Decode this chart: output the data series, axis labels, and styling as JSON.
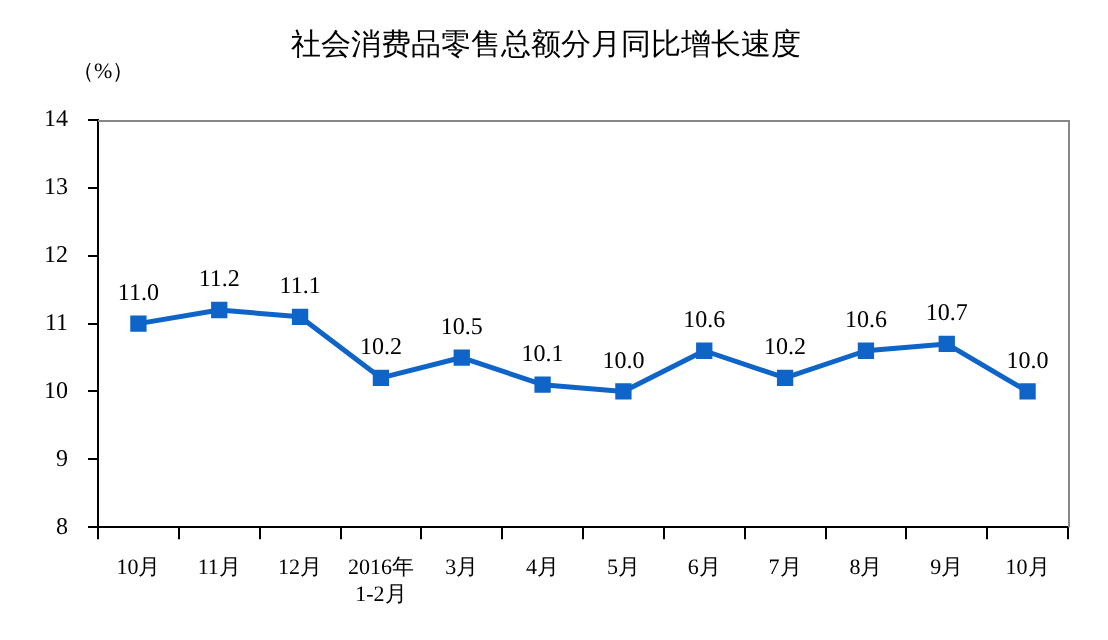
{
  "chart_data": {
    "type": "line",
    "title": "社会消费品零售总额分月同比增长速度",
    "ylabel": "（%）",
    "categories": [
      "10月",
      "11月",
      "12月",
      "2016年\n1-2月",
      "3月",
      "4月",
      "5月",
      "6月",
      "7月",
      "8月",
      "9月",
      "10月"
    ],
    "series": [
      {
        "color": "#0f64c8",
        "values": [
          11.0,
          11.2,
          11.1,
          10.2,
          10.5,
          10.1,
          10.0,
          10.6,
          10.2,
          10.6,
          10.7,
          10.0
        ],
        "value_labels": [
          "11.0",
          "11.2",
          "11.1",
          "10.2",
          "10.5",
          "10.1",
          "10.0",
          "10.6",
          "10.2",
          "10.6",
          "10.7",
          "10.0"
        ]
      }
    ],
    "ylim": [
      8,
      14
    ],
    "yticks": [
      8,
      9,
      10,
      11,
      12,
      13,
      14
    ],
    "grid": false,
    "legend": false,
    "marker": "square",
    "line_style": "solid"
  }
}
